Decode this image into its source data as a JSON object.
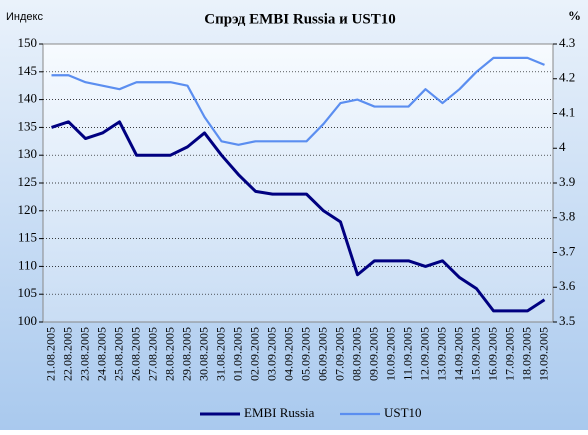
{
  "chart_data": {
    "type": "line",
    "title": "Спрэд EMBI Russia и UST10",
    "y_label": "Индекс",
    "y2_label": "%",
    "categories": [
      "21.08.2005",
      "22.08.2005",
      "23.08.2005",
      "24.08.2005",
      "25.08.2005",
      "26.08.2005",
      "27.08.2005",
      "28.08.2005",
      "29.08.2005",
      "30.08.2005",
      "31.08.2005",
      "01.09.2005",
      "02.09.2005",
      "03.09.2005",
      "04.09.2005",
      "05.09.2005",
      "06.09.2005",
      "07.09.2005",
      "08.09.2005",
      "09.09.2005",
      "10.09.2005",
      "11.09.2005",
      "12.09.2005",
      "13.09.2005",
      "14.09.2005",
      "15.09.2005",
      "16.09.2005",
      "17.09.2005",
      "18.09.2005",
      "19.09.2005"
    ],
    "series": [
      {
        "name": "EMBI Russia",
        "color": "#000080",
        "values": [
          135,
          136,
          133,
          134,
          136,
          130,
          130,
          130,
          131.5,
          134,
          130,
          126.5,
          123.5,
          123,
          123,
          123,
          120,
          118,
          108.5,
          111,
          111,
          111,
          110,
          111,
          108,
          106,
          102,
          102,
          102,
          104
        ]
      },
      {
        "name": "UST10",
        "color": "#5b8ef0",
        "axis": "y2",
        "values": [
          4.21,
          4.21,
          4.19,
          4.18,
          4.17,
          4.19,
          4.19,
          4.19,
          4.18,
          4.09,
          4.02,
          4.01,
          4.02,
          4.02,
          4.02,
          4.02,
          4.07,
          4.13,
          4.14,
          4.12,
          4.12,
          4.12,
          4.17,
          4.13,
          4.17,
          4.22,
          4.26,
          4.26,
          4.26,
          4.24
        ]
      }
    ],
    "ylim": [
      100,
      150
    ],
    "yticks": [
      100,
      105,
      110,
      115,
      120,
      125,
      130,
      135,
      140,
      145,
      150
    ],
    "y2lim": [
      3.5,
      4.3
    ],
    "y2ticks": [
      3.5,
      3.6,
      3.7,
      3.8,
      3.9,
      4,
      4.1,
      4.2,
      4.3
    ],
    "grid": true,
    "legend": "bottom"
  }
}
